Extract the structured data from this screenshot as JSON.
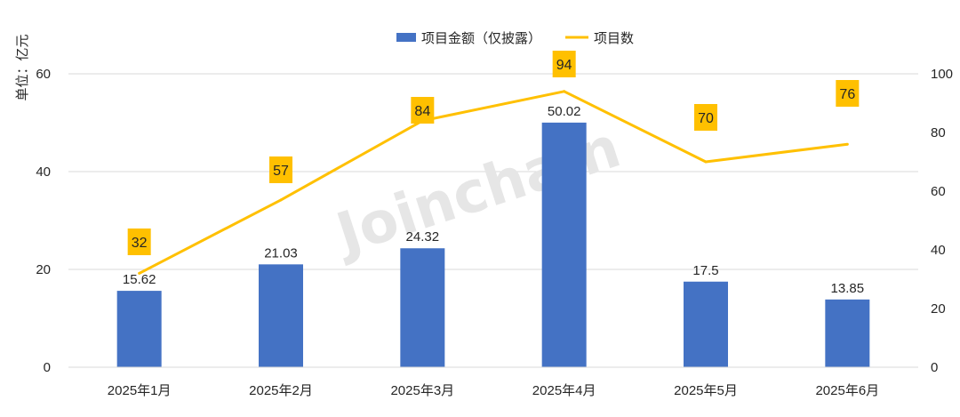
{
  "chart_data": {
    "type": "bar",
    "categories": [
      "2025年1月",
      "2025年2月",
      "2025年3月",
      "2025年4月",
      "2025年5月",
      "2025年6月"
    ],
    "series": [
      {
        "name": "项目金额（仅披露）",
        "type": "bar",
        "axis": "left",
        "values": [
          15.62,
          21.03,
          24.32,
          50.02,
          17.5,
          13.85
        ],
        "labels": [
          "15.62",
          "21.03",
          "24.32",
          "50.02",
          "17.5",
          "13.85"
        ],
        "color": "#4472C4"
      },
      {
        "name": "项目数",
        "type": "line",
        "axis": "right",
        "values": [
          32,
          57,
          84,
          94,
          70,
          76
        ],
        "labels": [
          "32",
          "57",
          "84",
          "94",
          "70",
          "76"
        ],
        "color": "#FFC000"
      }
    ],
    "ylabel": "单位：亿元",
    "ylim": [
      0,
      60
    ],
    "yticks": [
      0,
      20,
      40,
      60
    ],
    "y2lim": [
      0,
      100
    ],
    "y2ticks": [
      0,
      20,
      40,
      60,
      80,
      100
    ],
    "legend": "top-center",
    "grid": true,
    "watermark": "Joinchain"
  }
}
